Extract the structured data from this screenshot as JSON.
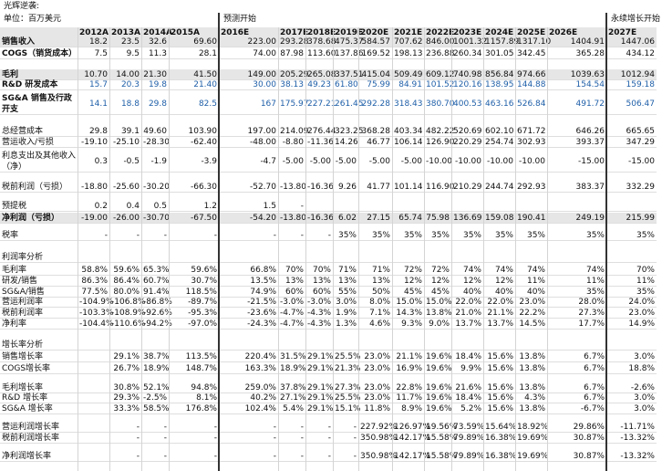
{
  "title": "光辉逆袭:",
  "unit": "单位：百万美元",
  "forecast_start": "预测开始",
  "perpetual_start": "永续增长开始",
  "columns": [
    "2012A",
    "2013A",
    "2014A",
    "2015A",
    "2016E",
    "2017E",
    "2018E",
    "2019E",
    "2020E",
    "2021E",
    "2022E",
    "2023E",
    "2024E",
    "2025E",
    "2026E",
    "2027E"
  ],
  "rows": [
    {
      "label": "销售收入",
      "cells": [
        "18.2",
        "23.5",
        "32.6",
        "69.60",
        "223.00",
        "293.28",
        "378.68",
        "475.37",
        "584.57",
        "707.62",
        "846.00",
        "1001.32",
        "1157.89",
        "1317.10",
        "1404.91",
        "1447.06"
      ]
    },
    {
      "label": "COGS（销货成本）",
      "cells": [
        "7.5",
        "9.5",
        "11.3",
        "28.1",
        "74.00",
        "87.98",
        "113.60",
        "137.86",
        "169.52",
        "198.13",
        "236.88",
        "260.34",
        "301.05",
        "342.45",
        "365.28",
        "434.12"
      ]
    },
    {
      "label": "毛利",
      "cells": [
        "10.70",
        "14.00",
        "21.30",
        "41.50",
        "149.00",
        "205.29",
        "265.08",
        "337.51",
        "415.04",
        "509.49",
        "609.12",
        "740.98",
        "856.84",
        "974.66",
        "1039.63",
        "1012.94"
      ]
    },
    {
      "label": "R&D 研发成本",
      "cells": [
        "15.7",
        "20.3",
        "19.8",
        "21.40",
        "30.00",
        "38.13",
        "49.23",
        "61.80",
        "75.99",
        "84.91",
        "101.52",
        "120.16",
        "138.95",
        "144.88",
        "154.54",
        "159.18"
      ]
    },
    {
      "label": "SG&A 销售及行政开支",
      "cells": [
        "14.1",
        "18.8",
        "29.8",
        "82.5",
        "167",
        "175.97",
        "227.21",
        "261.45",
        "292.28",
        "318.43",
        "380.70",
        "400.53",
        "463.16",
        "526.84",
        "491.72",
        "506.47"
      ]
    },
    {
      "label": "总经营成本",
      "cells": [
        "29.8",
        "39.1",
        "49.60",
        "103.90",
        "197.00",
        "214.09",
        "276.44",
        "323.25",
        "368.28",
        "403.34",
        "482.22",
        "520.69",
        "602.10",
        "671.72",
        "646.26",
        "665.65"
      ]
    },
    {
      "label": "营运收入/亏损",
      "cells": [
        "-19.10",
        "-25.10",
        "-28.30",
        "-62.40",
        "-48.00",
        "-8.80",
        "-11.36",
        "14.26",
        "46.77",
        "106.14",
        "126.90",
        "220.29",
        "254.74",
        "302.93",
        "393.37",
        "347.29"
      ]
    },
    {
      "label": "利息支出及其他收入（净）",
      "cells": [
        "0.3",
        "-0.5",
        "-1.9",
        "-3.9",
        "-4.7",
        "-5.00",
        "-5.00",
        "-5.00",
        "-5.00",
        "-5.00",
        "-10.00",
        "-10.00",
        "-10.00",
        "-10.00",
        "-15.00",
        "-15.00"
      ]
    },
    {
      "label": "税前利润（亏损）",
      "cells": [
        "-18.80",
        "-25.60",
        "-30.20",
        "-66.30",
        "-52.70",
        "-13.80",
        "-16.36",
        "9.26",
        "41.77",
        "101.14",
        "116.90",
        "210.29",
        "244.74",
        "292.93",
        "383.37",
        "332.29"
      ]
    },
    {
      "label": "预提税",
      "cells": [
        "0.2",
        "0.4",
        "0.5",
        "1.2",
        "1.5",
        "-",
        null,
        null,
        null,
        null,
        null,
        null,
        null,
        null,
        null,
        null
      ]
    },
    {
      "label": "净利润（亏损）",
      "cells": [
        "-19.00",
        "-26.00",
        "-30.70",
        "-67.50",
        "-54.20",
        "-13.80",
        "-16.36",
        "6.02",
        "27.15",
        "65.74",
        "75.98",
        "136.69",
        "159.08",
        "190.41",
        "249.19",
        "215.99"
      ]
    },
    {
      "label": "税率",
      "cells": [
        "-",
        "-",
        "-",
        "-",
        "-",
        "-",
        "-",
        "35%",
        "35%",
        "35%",
        "35%",
        "35%",
        "35%",
        "35%",
        "35%",
        "35%"
      ]
    },
    {
      "label": "利润率分析"
    },
    {
      "label": "毛利率",
      "cells": [
        "58.8%",
        "59.6%",
        "65.3%",
        "59.6%",
        "66.8%",
        "70%",
        "70%",
        "71%",
        "71%",
        "72%",
        "72%",
        "74%",
        "74%",
        "74%",
        "74%",
        "70%"
      ]
    },
    {
      "label": "研发/销售",
      "cells": [
        "86.3%",
        "86.4%",
        "60.7%",
        "30.7%",
        "13.5%",
        "13%",
        "13%",
        "13%",
        "13%",
        "12%",
        "12%",
        "12%",
        "12%",
        "11%",
        "11%",
        "11%"
      ]
    },
    {
      "label": "SG&A/销售",
      "cells": [
        "77.5%",
        "80.0%",
        "91.4%",
        "118.5%",
        "74.9%",
        "60%",
        "60%",
        "55%",
        "50%",
        "45%",
        "45%",
        "40%",
        "40%",
        "40%",
        "35%",
        "35%"
      ]
    },
    {
      "label": "营运利润率",
      "cells": [
        "-104.9%",
        "-106.8%",
        "-86.8%",
        "-89.7%",
        "-21.5%",
        "-3.0%",
        "-3.0%",
        "3.0%",
        "8.0%",
        "15.0%",
        "15.0%",
        "22.0%",
        "22.0%",
        "23.0%",
        "28.0%",
        "24.0%"
      ]
    },
    {
      "label": "税前利润率",
      "cells": [
        "-103.3%",
        "-108.9%",
        "-92.6%",
        "-95.3%",
        "-23.6%",
        "-4.7%",
        "-4.3%",
        "1.9%",
        "7.1%",
        "14.3%",
        "13.8%",
        "21.0%",
        "21.1%",
        "22.2%",
        "27.3%",
        "23.0%"
      ]
    },
    {
      "label": "净利率",
      "cells": [
        "-104.4%",
        "-110.6%",
        "-94.2%",
        "-97.0%",
        "-24.3%",
        "-4.7%",
        "-4.3%",
        "1.3%",
        "4.6%",
        "9.3%",
        "9.0%",
        "13.7%",
        "13.7%",
        "14.5%",
        "17.7%",
        "14.9%"
      ]
    },
    {
      "label": "增长率分析"
    },
    {
      "label": "销售增长率",
      "cells": [
        null,
        "29.1%",
        "38.7%",
        "113.5%",
        "220.4%",
        "31.5%",
        "29.1%",
        "25.5%",
        "23.0%",
        "21.1%",
        "19.6%",
        "18.4%",
        "15.6%",
        "13.8%",
        "6.7%",
        "3.0%"
      ]
    },
    {
      "label": "COGS增长率",
      "cells": [
        null,
        "26.7%",
        "18.9%",
        "148.7%",
        "163.3%",
        "18.9%",
        "29.1%",
        "21.3%",
        "23.0%",
        "16.9%",
        "19.6%",
        "9.9%",
        "15.6%",
        "13.8%",
        "6.7%",
        "18.8%"
      ]
    },
    {
      "label": "毛利增长率",
      "cells": [
        null,
        "30.8%",
        "52.1%",
        "94.8%",
        "259.0%",
        "37.8%",
        "29.1%",
        "27.3%",
        "23.0%",
        "22.8%",
        "19.6%",
        "21.6%",
        "15.6%",
        "13.8%",
        "6.7%",
        "-2.6%"
      ]
    },
    {
      "label": "R&D 增长率",
      "cells": [
        null,
        "29.3%",
        "-2.5%",
        "8.1%",
        "40.2%",
        "27.1%",
        "29.1%",
        "25.5%",
        "23.0%",
        "11.7%",
        "19.6%",
        "18.4%",
        "15.6%",
        "4.3%",
        "6.7%",
        "3.0%"
      ]
    },
    {
      "label": "SG&A 增长率",
      "cells": [
        null,
        "33.3%",
        "58.5%",
        "176.8%",
        "102.4%",
        "5.4%",
        "29.1%",
        "15.1%",
        "11.8%",
        "8.9%",
        "19.6%",
        "5.2%",
        "15.6%",
        "13.8%",
        "-6.7%",
        "3.0%"
      ]
    },
    {
      "label": "营运利润增长率",
      "cells": [
        null,
        "-",
        "-",
        "-",
        "-",
        "-",
        "-",
        "-",
        "227.92%",
        "126.97%",
        "19.56%",
        "73.59%",
        "15.64%",
        "18.92%",
        "29.86%",
        "-11.71%"
      ]
    },
    {
      "label": "税前利润增长率",
      "cells": [
        null,
        "-",
        "-",
        "-",
        "-",
        "-",
        "-",
        "-",
        "350.98%",
        "142.17%",
        "15.58%",
        "79.89%",
        "16.38%",
        "19.69%",
        "30.87%",
        "-13.32%"
      ]
    },
    {
      "label": "净利润增长率",
      "cells": [
        null,
        "-",
        "-",
        "-",
        "-",
        "-",
        "-",
        "-",
        "350.98%",
        "142.17%",
        "15.58%",
        "79.89%",
        "16.38%",
        "19.69%",
        "30.87%",
        "-13.32%"
      ]
    }
  ]
}
